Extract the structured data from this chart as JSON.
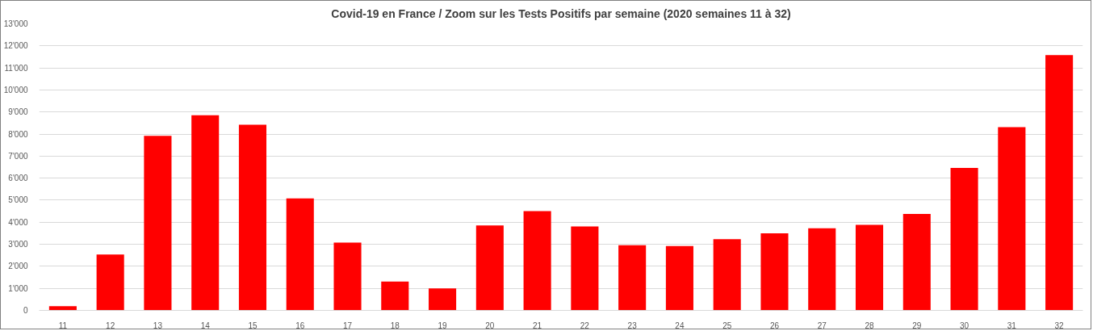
{
  "chart_data": {
    "type": "bar",
    "title": "Covid-19 en France / Zoom sur les Tests Positifs par semaine (2020 semaines 11 à 32)",
    "categories": [
      "11",
      "12",
      "13",
      "14",
      "15",
      "16",
      "17",
      "18",
      "19",
      "20",
      "21",
      "22",
      "23",
      "24",
      "25",
      "26",
      "27",
      "28",
      "29",
      "30",
      "31",
      "32"
    ],
    "values": [
      190,
      2540,
      7920,
      8850,
      8420,
      5080,
      3080,
      1310,
      1000,
      3850,
      4500,
      3810,
      2960,
      2920,
      3230,
      3500,
      3730,
      3880,
      4380,
      6460,
      8310,
      11580
    ],
    "color": "#ff0000",
    "ylim": [
      0,
      13000
    ],
    "yticks": [
      0,
      {
        "value": 1000,
        "label": "1'000"
      },
      {
        "value": 2000,
        "label": "2'000"
      },
      {
        "value": 3000,
        "label": "3'000"
      },
      {
        "value": 4000,
        "label": "4'000"
      },
      {
        "value": 5000,
        "label": "5'000"
      },
      {
        "value": 6000,
        "label": "6'000"
      },
      {
        "value": 7000,
        "label": "7'000"
      },
      {
        "value": 8000,
        "label": "8'000"
      },
      {
        "value": 9000,
        "label": "9'000"
      },
      {
        "value": 10000,
        "label": "10'000"
      },
      {
        "value": 11000,
        "label": "11'000"
      },
      {
        "value": 12000,
        "label": "12'000"
      },
      {
        "value": 13000,
        "label": "13'000"
      }
    ],
    "grid": "y"
  }
}
